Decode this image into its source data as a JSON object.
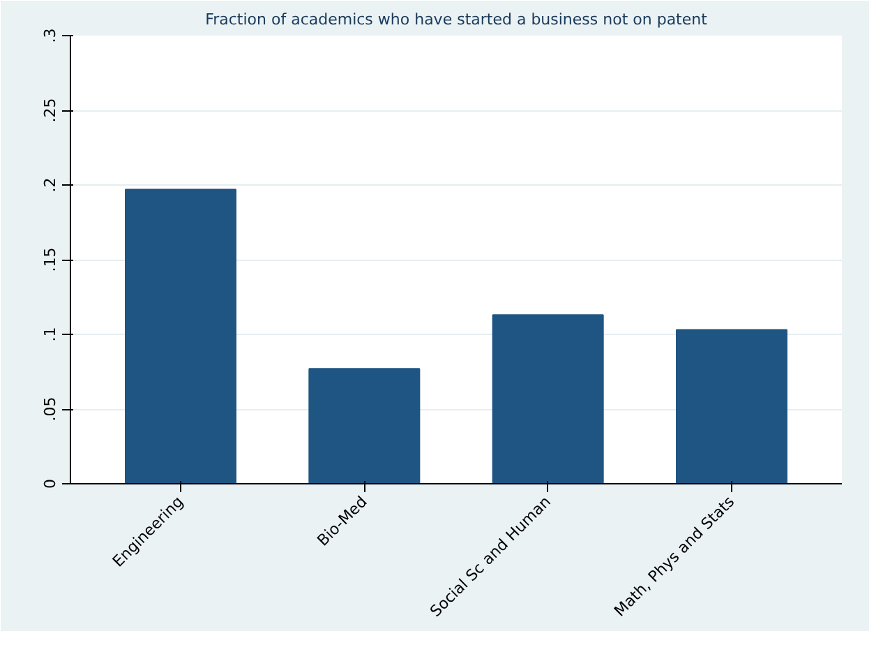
{
  "chart_data": {
    "type": "bar",
    "title": "Fraction of academics who have started a business not on patent",
    "categories": [
      "Engineering",
      "Bio-Med",
      "Social Sc and Human",
      "Math, Phys and Stats"
    ],
    "values": [
      0.197,
      0.077,
      0.113,
      0.103
    ],
    "color": "#1f5582",
    "ylim": [
      0,
      0.3
    ],
    "yticks": [
      {
        "value": 0,
        "label": "0"
      },
      {
        "value": 0.05,
        "label": ".05"
      },
      {
        "value": 0.1,
        "label": ".1"
      },
      {
        "value": 0.15,
        "label": ".15"
      },
      {
        "value": 0.2,
        "label": ".2"
      },
      {
        "value": 0.25,
        "label": ".25"
      },
      {
        "value": 0.3,
        "label": ".3"
      }
    ],
    "grid": "y"
  }
}
